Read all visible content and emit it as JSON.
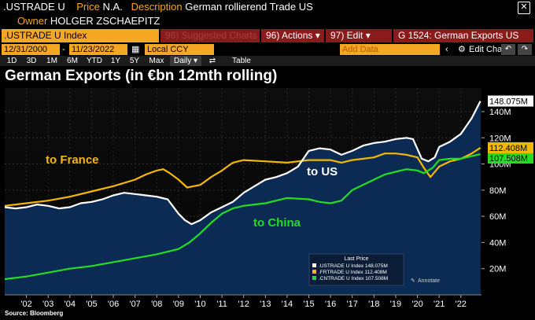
{
  "header": {
    "ticker": ".USTRADE U",
    "price_label": "Price",
    "price_value": "N.A.",
    "description_label": "Description",
    "description_value": "German rollierend Trade US",
    "owner_label": "Owner",
    "owner_value": "HOLGER ZSCHAEPITZ",
    "close_glyph": "✕"
  },
  "toolbar": {
    "ticker_field": ".USTRADE U Index",
    "suggested": "96) Suggested Charts",
    "actions": "96) Actions ▾",
    "edit": "97) Edit ▾",
    "chart_code": "G 1524: German Exports US"
  },
  "range": {
    "start": "12/31/2000",
    "end": "11/23/2022",
    "currency": "Local CCY",
    "add_data_placeholder": "Add Data",
    "edit_chart": "Edit Chart"
  },
  "tabs": [
    {
      "label": "1D"
    },
    {
      "label": "3D"
    },
    {
      "label": "1M"
    },
    {
      "label": "6M"
    },
    {
      "label": "YTD"
    },
    {
      "label": "1Y"
    },
    {
      "label": "5Y"
    },
    {
      "label": "Max"
    },
    {
      "label": "Daily ▾"
    },
    {
      "label": "⇄"
    },
    {
      "label": "Table"
    }
  ],
  "colors": {
    "us": "#ffffff",
    "france": "#f5b800",
    "china": "#22dd22",
    "area": "#0c2b54"
  },
  "chart_data": {
    "type": "line",
    "title": "German Exports (in €bn 12mth rolling)",
    "x_tick_labels": [
      "'02",
      "'03",
      "'04",
      "'05",
      "'06",
      "'07",
      "'08",
      "'09",
      "'10",
      "'11",
      "'12",
      "'13",
      "'14",
      "'15",
      "'16",
      "'17",
      "'18",
      "'19",
      "'20",
      "'21",
      "'22"
    ],
    "y_tick_labels": [
      "20M",
      "40M",
      "60M",
      "80M",
      "100M",
      "120M",
      "140M"
    ],
    "y_ticks": [
      20,
      40,
      60,
      80,
      100,
      120,
      140
    ],
    "ylim": [
      0,
      158
    ],
    "xlim": [
      2001.0,
      2022.95
    ],
    "series": [
      {
        "name": "to US",
        "ticker": ".USTRADE U Index",
        "last": 148.075,
        "last_label": "148.075M",
        "legend": ".USTRADE U Index 148.075M",
        "color_key": "us",
        "x": [
          2001.0,
          2001.5,
          2002.0,
          2002.5,
          2003.0,
          2003.5,
          2004.0,
          2004.5,
          2005.0,
          2005.5,
          2006.0,
          2006.5,
          2007.0,
          2007.5,
          2008.0,
          2008.5,
          2009.0,
          2009.3,
          2009.6,
          2010.0,
          2010.5,
          2011.0,
          2011.5,
          2012.0,
          2012.5,
          2013.0,
          2013.5,
          2014.0,
          2014.5,
          2015.0,
          2015.5,
          2016.0,
          2016.5,
          2017.0,
          2017.5,
          2018.0,
          2018.5,
          2019.0,
          2019.5,
          2019.8,
          2020.2,
          2020.5,
          2020.8,
          2021.0,
          2021.5,
          2022.0,
          2022.5,
          2022.9
        ],
        "y": [
          67,
          66,
          67,
          69,
          68,
          66,
          67,
          70,
          71,
          73,
          76,
          78,
          77,
          76,
          75,
          73,
          62,
          57,
          54,
          57,
          63,
          67,
          71,
          78,
          83,
          88,
          90,
          93,
          98,
          110,
          112,
          111,
          107,
          110,
          114,
          116,
          117,
          119,
          120,
          119,
          104,
          102,
          105,
          113,
          117,
          123,
          135,
          148
        ]
      },
      {
        "name": "to France",
        "ticker": ".FRTRADE U Index",
        "last": 112.408,
        "last_label": "112.408M",
        "legend": ".FRTRADE U Index 112.408M",
        "color_key": "france",
        "x": [
          2001.0,
          2001.5,
          2002.0,
          2003.0,
          2004.0,
          2005.0,
          2006.0,
          2007.0,
          2007.5,
          2008.0,
          2008.3,
          2008.6,
          2009.0,
          2009.4,
          2010.0,
          2010.5,
          2011.0,
          2011.5,
          2012.0,
          2013.0,
          2014.0,
          2015.0,
          2016.0,
          2016.5,
          2017.0,
          2018.0,
          2018.5,
          2019.0,
          2019.5,
          2020.0,
          2020.3,
          2020.6,
          2021.0,
          2021.5,
          2022.0,
          2022.5,
          2022.9
        ],
        "y": [
          68,
          69,
          70,
          72,
          75,
          79,
          83,
          88,
          92,
          95,
          96,
          93,
          88,
          82,
          84,
          90,
          95,
          101,
          103,
          102,
          101,
          103,
          103,
          101,
          103,
          105,
          108,
          108,
          107,
          105,
          97,
          90,
          98,
          102,
          104,
          108,
          112.4
        ]
      },
      {
        "name": "to China",
        "ticker": ".CNTRADE U Index",
        "last": 107.508,
        "last_label": "107.508M",
        "legend": ".CNTRADE U Index 107.508M",
        "color_key": "china",
        "x": [
          2001.0,
          2002.0,
          2003.0,
          2004.0,
          2005.0,
          2006.0,
          2007.0,
          2008.0,
          2008.5,
          2009.0,
          2009.5,
          2010.0,
          2010.5,
          2011.0,
          2011.5,
          2012.0,
          2012.5,
          2013.0,
          2014.0,
          2015.0,
          2015.5,
          2016.0,
          2016.5,
          2017.0,
          2018.0,
          2018.5,
          2019.0,
          2019.5,
          2020.0,
          2020.3,
          2020.7,
          2021.0,
          2021.5,
          2022.0,
          2022.5,
          2022.9
        ],
        "y": [
          12,
          14,
          17,
          20,
          22,
          25,
          28,
          31,
          33,
          35,
          40,
          47,
          55,
          62,
          66,
          68,
          69,
          70,
          74,
          73,
          71,
          70,
          72,
          80,
          88,
          92,
          94,
          96,
          95,
          93,
          97,
          103,
          104,
          104,
          106,
          107.5
        ]
      }
    ],
    "annotations": [
      {
        "text": "to France",
        "color_key": "france"
      },
      {
        "text": "to US",
        "color_key": "us"
      },
      {
        "text": "to China",
        "color_key": "china"
      }
    ],
    "legend_title": "Last Price",
    "annotate_label": "Annotate"
  },
  "footer": {
    "source": "Source: Bloomberg"
  }
}
